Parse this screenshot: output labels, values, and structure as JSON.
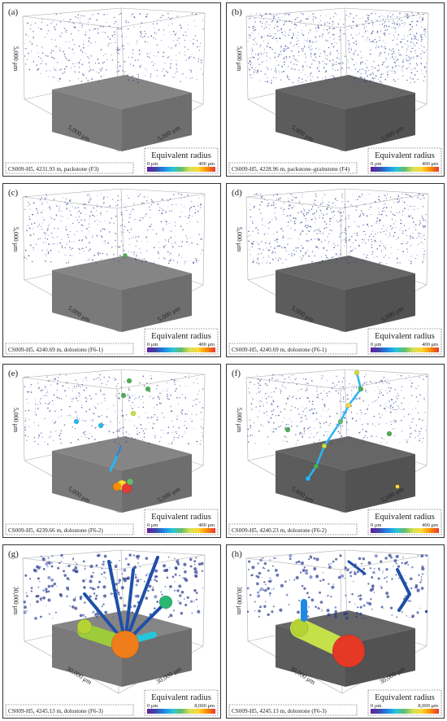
{
  "panels": [
    {
      "label": "(a)",
      "caption": "CS009-H5, 4231.93 m, packstone (F3)",
      "axis_labels": [
        "5,000 μm",
        "5,000 μm",
        "5,000 μm"
      ],
      "legend": {
        "title": "Equivalent radius",
        "min": "0 μm",
        "max": "400 μm"
      }
    },
    {
      "label": "(b)",
      "caption": "CS009-H5, 4228.96 m, packstone–grainstone (F4)",
      "axis_labels": [
        "5,000 μm",
        "5,000 μm",
        "5,000 μm"
      ],
      "legend": {
        "title": "Equivalent radius",
        "min": "0 μm",
        "max": "400 μm"
      }
    },
    {
      "label": "(c)",
      "caption": "CS009-H5, 4240.69 m, dolostone (F6-1)",
      "axis_labels": [
        "5,000 μm",
        "5,000 μm",
        "5,000 μm"
      ],
      "legend": {
        "title": "Equivalent radius",
        "min": "0 μm",
        "max": "400 μm"
      }
    },
    {
      "label": "(d)",
      "caption": "CS009-H5, 4240.69 m, dolostone (F6-1)",
      "axis_labels": [
        "5,000 μm",
        "5,000 μm",
        "5,000 μm"
      ],
      "legend": {
        "title": "Equivalent radius",
        "min": "0 μm",
        "max": "400 μm"
      }
    },
    {
      "label": "(e)",
      "caption": "CS009-H5, 4239.66 m, dolostone (F6-2)",
      "axis_labels": [
        "5,000 μm",
        "5,000 μm",
        "5,000 μm"
      ],
      "legend": {
        "title": "Equivalent radius",
        "min": "0 μm",
        "max": "400 μm"
      }
    },
    {
      "label": "(f)",
      "caption": "CS009-H5, 4240.23 m, dolostone (F6-2)",
      "axis_labels": [
        "5,000 μm",
        "5,000 μm",
        "5,000 μm"
      ],
      "legend": {
        "title": "Equivalent radius",
        "min": "0 μm",
        "max": "400 μm"
      }
    },
    {
      "label": "(g)",
      "caption": "CS009-H5, 4245.13 m, dolostone (F6-3)",
      "axis_labels": [
        "30,000 μm",
        "30,000 μm",
        "30,000 μm"
      ],
      "legend": {
        "title": "Equivalent radius",
        "min": "0 μm",
        "max": "8,000 μm"
      }
    },
    {
      "label": "(h)",
      "caption": "CS009-H5, 4245.13 m, dolostone (F6-3)",
      "axis_labels": [
        "30,000 μm",
        "30,000 μm",
        "30,000 μm"
      ],
      "legend": {
        "title": "Equivalent radius",
        "min": "0 μm",
        "max": "8,000 μm"
      }
    }
  ]
}
